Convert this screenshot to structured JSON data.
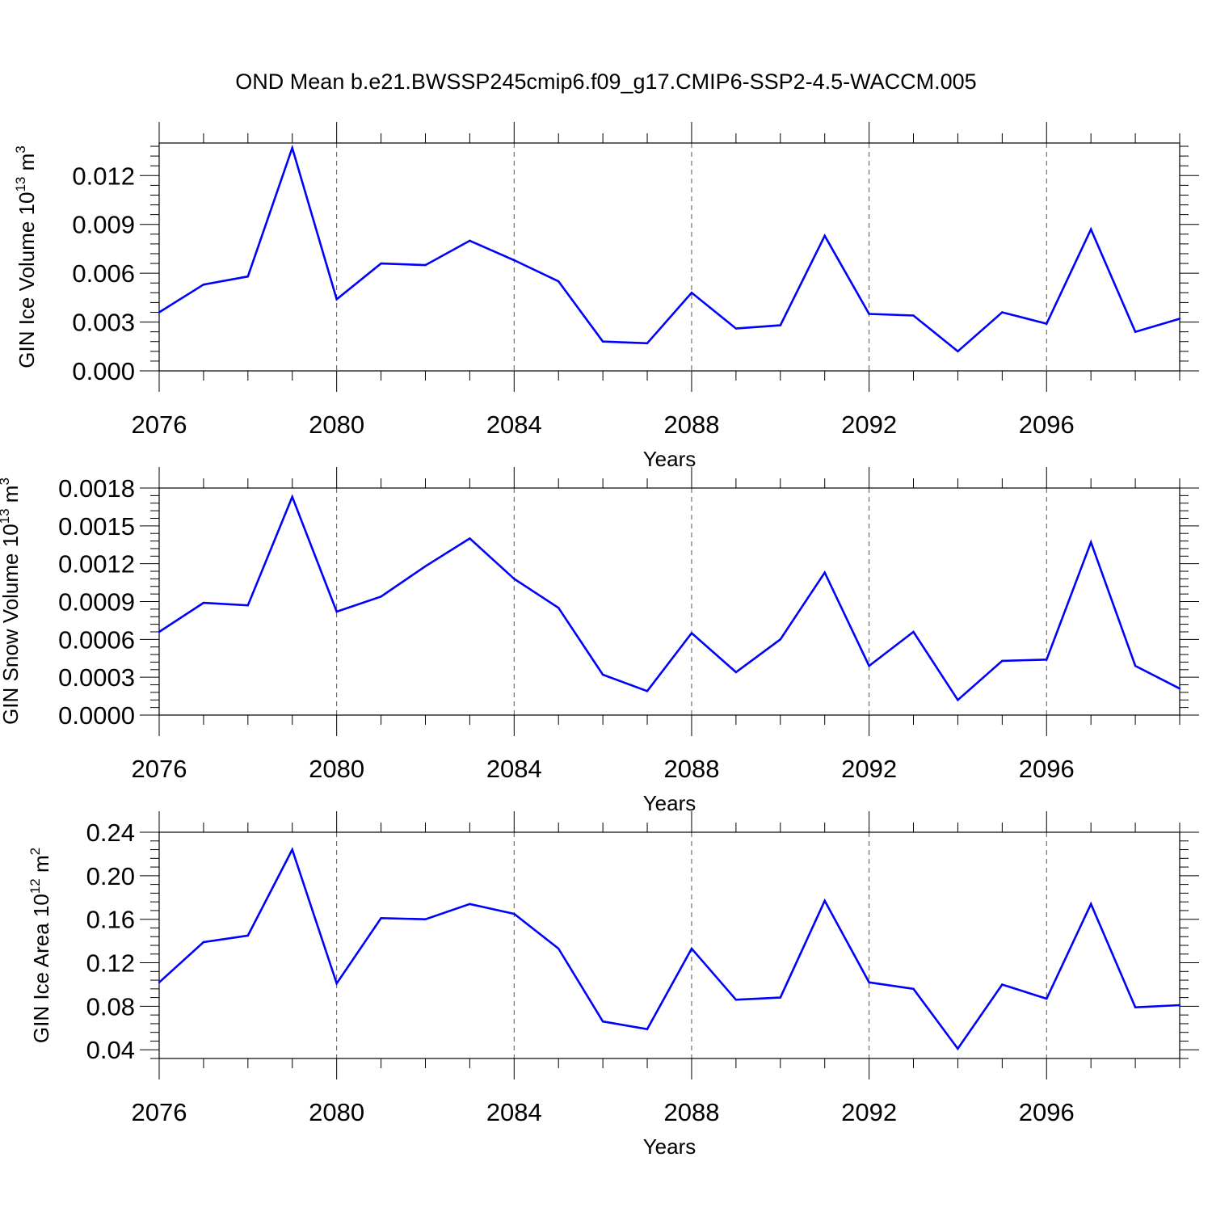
{
  "title": "OND Mean b.e21.BWSSP245cmip6.f09_g17.CMIP6-SSP2-4.5-WACCM.005",
  "line_color": "#0000ff",
  "chart_data": [
    {
      "type": "line",
      "ylabel": "GIN Ice Volume 10",
      "ylabel_exp": "13",
      "ylabel_unit": " m",
      "ylabel_unit_exp": "3",
      "xlabel": "Years",
      "xlim": [
        2076,
        2099
      ],
      "ylim": [
        0.0,
        0.014
      ],
      "yticks": [
        0.0,
        0.003,
        0.006,
        0.009,
        0.012
      ],
      "ytick_labels": [
        "0.000",
        "0.003",
        "0.006",
        "0.009",
        "0.012"
      ],
      "xticks": [
        2076,
        2080,
        2084,
        2088,
        2092,
        2096
      ],
      "xtick_labels": [
        "2076",
        "2080",
        "2084",
        "2088",
        "2092",
        "2096"
      ],
      "x": [
        2076,
        2077,
        2078,
        2079,
        2080,
        2081,
        2082,
        2083,
        2084,
        2085,
        2086,
        2087,
        2088,
        2089,
        2090,
        2091,
        2092,
        2093,
        2094,
        2095,
        2096,
        2097,
        2098,
        2099
      ],
      "series": [
        {
          "name": "GIN Ice Volume",
          "values": [
            0.0036,
            0.0053,
            0.0058,
            0.0137,
            0.0044,
            0.0066,
            0.0065,
            0.008,
            0.0068,
            0.0055,
            0.0018,
            0.0017,
            0.0048,
            0.0026,
            0.0028,
            0.0083,
            0.0035,
            0.0034,
            0.0012,
            0.0036,
            0.0029,
            0.0087,
            0.0024,
            0.0032
          ]
        }
      ]
    },
    {
      "type": "line",
      "ylabel": "GIN Snow Volume 10",
      "ylabel_exp": "13",
      "ylabel_unit": " m",
      "ylabel_unit_exp": "3",
      "xlabel": "Years",
      "xlim": [
        2076,
        2099
      ],
      "ylim": [
        0.0,
        0.0018
      ],
      "yticks": [
        0.0,
        0.0003,
        0.0006,
        0.0009,
        0.0012,
        0.0015,
        0.0018
      ],
      "ytick_labels": [
        "0.0000",
        "0.0003",
        "0.0006",
        "0.0009",
        "0.0012",
        "0.0015",
        "0.0018"
      ],
      "xticks": [
        2076,
        2080,
        2084,
        2088,
        2092,
        2096
      ],
      "xtick_labels": [
        "2076",
        "2080",
        "2084",
        "2088",
        "2092",
        "2096"
      ],
      "x": [
        2076,
        2077,
        2078,
        2079,
        2080,
        2081,
        2082,
        2083,
        2084,
        2085,
        2086,
        2087,
        2088,
        2089,
        2090,
        2091,
        2092,
        2093,
        2094,
        2095,
        2096,
        2097,
        2098,
        2099
      ],
      "series": [
        {
          "name": "GIN Snow Volume",
          "values": [
            0.00066,
            0.00089,
            0.00087,
            0.00173,
            0.00082,
            0.00094,
            0.00118,
            0.0014,
            0.00108,
            0.00085,
            0.00032,
            0.00019,
            0.00065,
            0.00034,
            0.0006,
            0.00113,
            0.00039,
            0.00066,
            0.00012,
            0.00043,
            0.00044,
            0.00137,
            0.00039,
            0.00021
          ]
        }
      ]
    },
    {
      "type": "line",
      "ylabel": "GIN Ice Area 10",
      "ylabel_exp": "12",
      "ylabel_unit": " m",
      "ylabel_unit_exp": "2",
      "xlabel": "Years",
      "xlim": [
        2076,
        2099
      ],
      "ylim": [
        0.032,
        0.24
      ],
      "yticks": [
        0.04,
        0.08,
        0.12,
        0.16,
        0.2,
        0.24
      ],
      "ytick_labels": [
        "0.04",
        "0.08",
        "0.12",
        "0.16",
        "0.20",
        "0.24"
      ],
      "xticks": [
        2076,
        2080,
        2084,
        2088,
        2092,
        2096
      ],
      "xtick_labels": [
        "2076",
        "2080",
        "2084",
        "2088",
        "2092",
        "2096"
      ],
      "x": [
        2076,
        2077,
        2078,
        2079,
        2080,
        2081,
        2082,
        2083,
        2084,
        2085,
        2086,
        2087,
        2088,
        2089,
        2090,
        2091,
        2092,
        2093,
        2094,
        2095,
        2096,
        2097,
        2098,
        2099
      ],
      "series": [
        {
          "name": "GIN Ice Area",
          "values": [
            0.102,
            0.139,
            0.145,
            0.224,
            0.101,
            0.161,
            0.16,
            0.174,
            0.165,
            0.133,
            0.066,
            0.059,
            0.133,
            0.086,
            0.088,
            0.177,
            0.102,
            0.096,
            0.041,
            0.1,
            0.087,
            0.174,
            0.079,
            0.081
          ]
        }
      ]
    }
  ]
}
